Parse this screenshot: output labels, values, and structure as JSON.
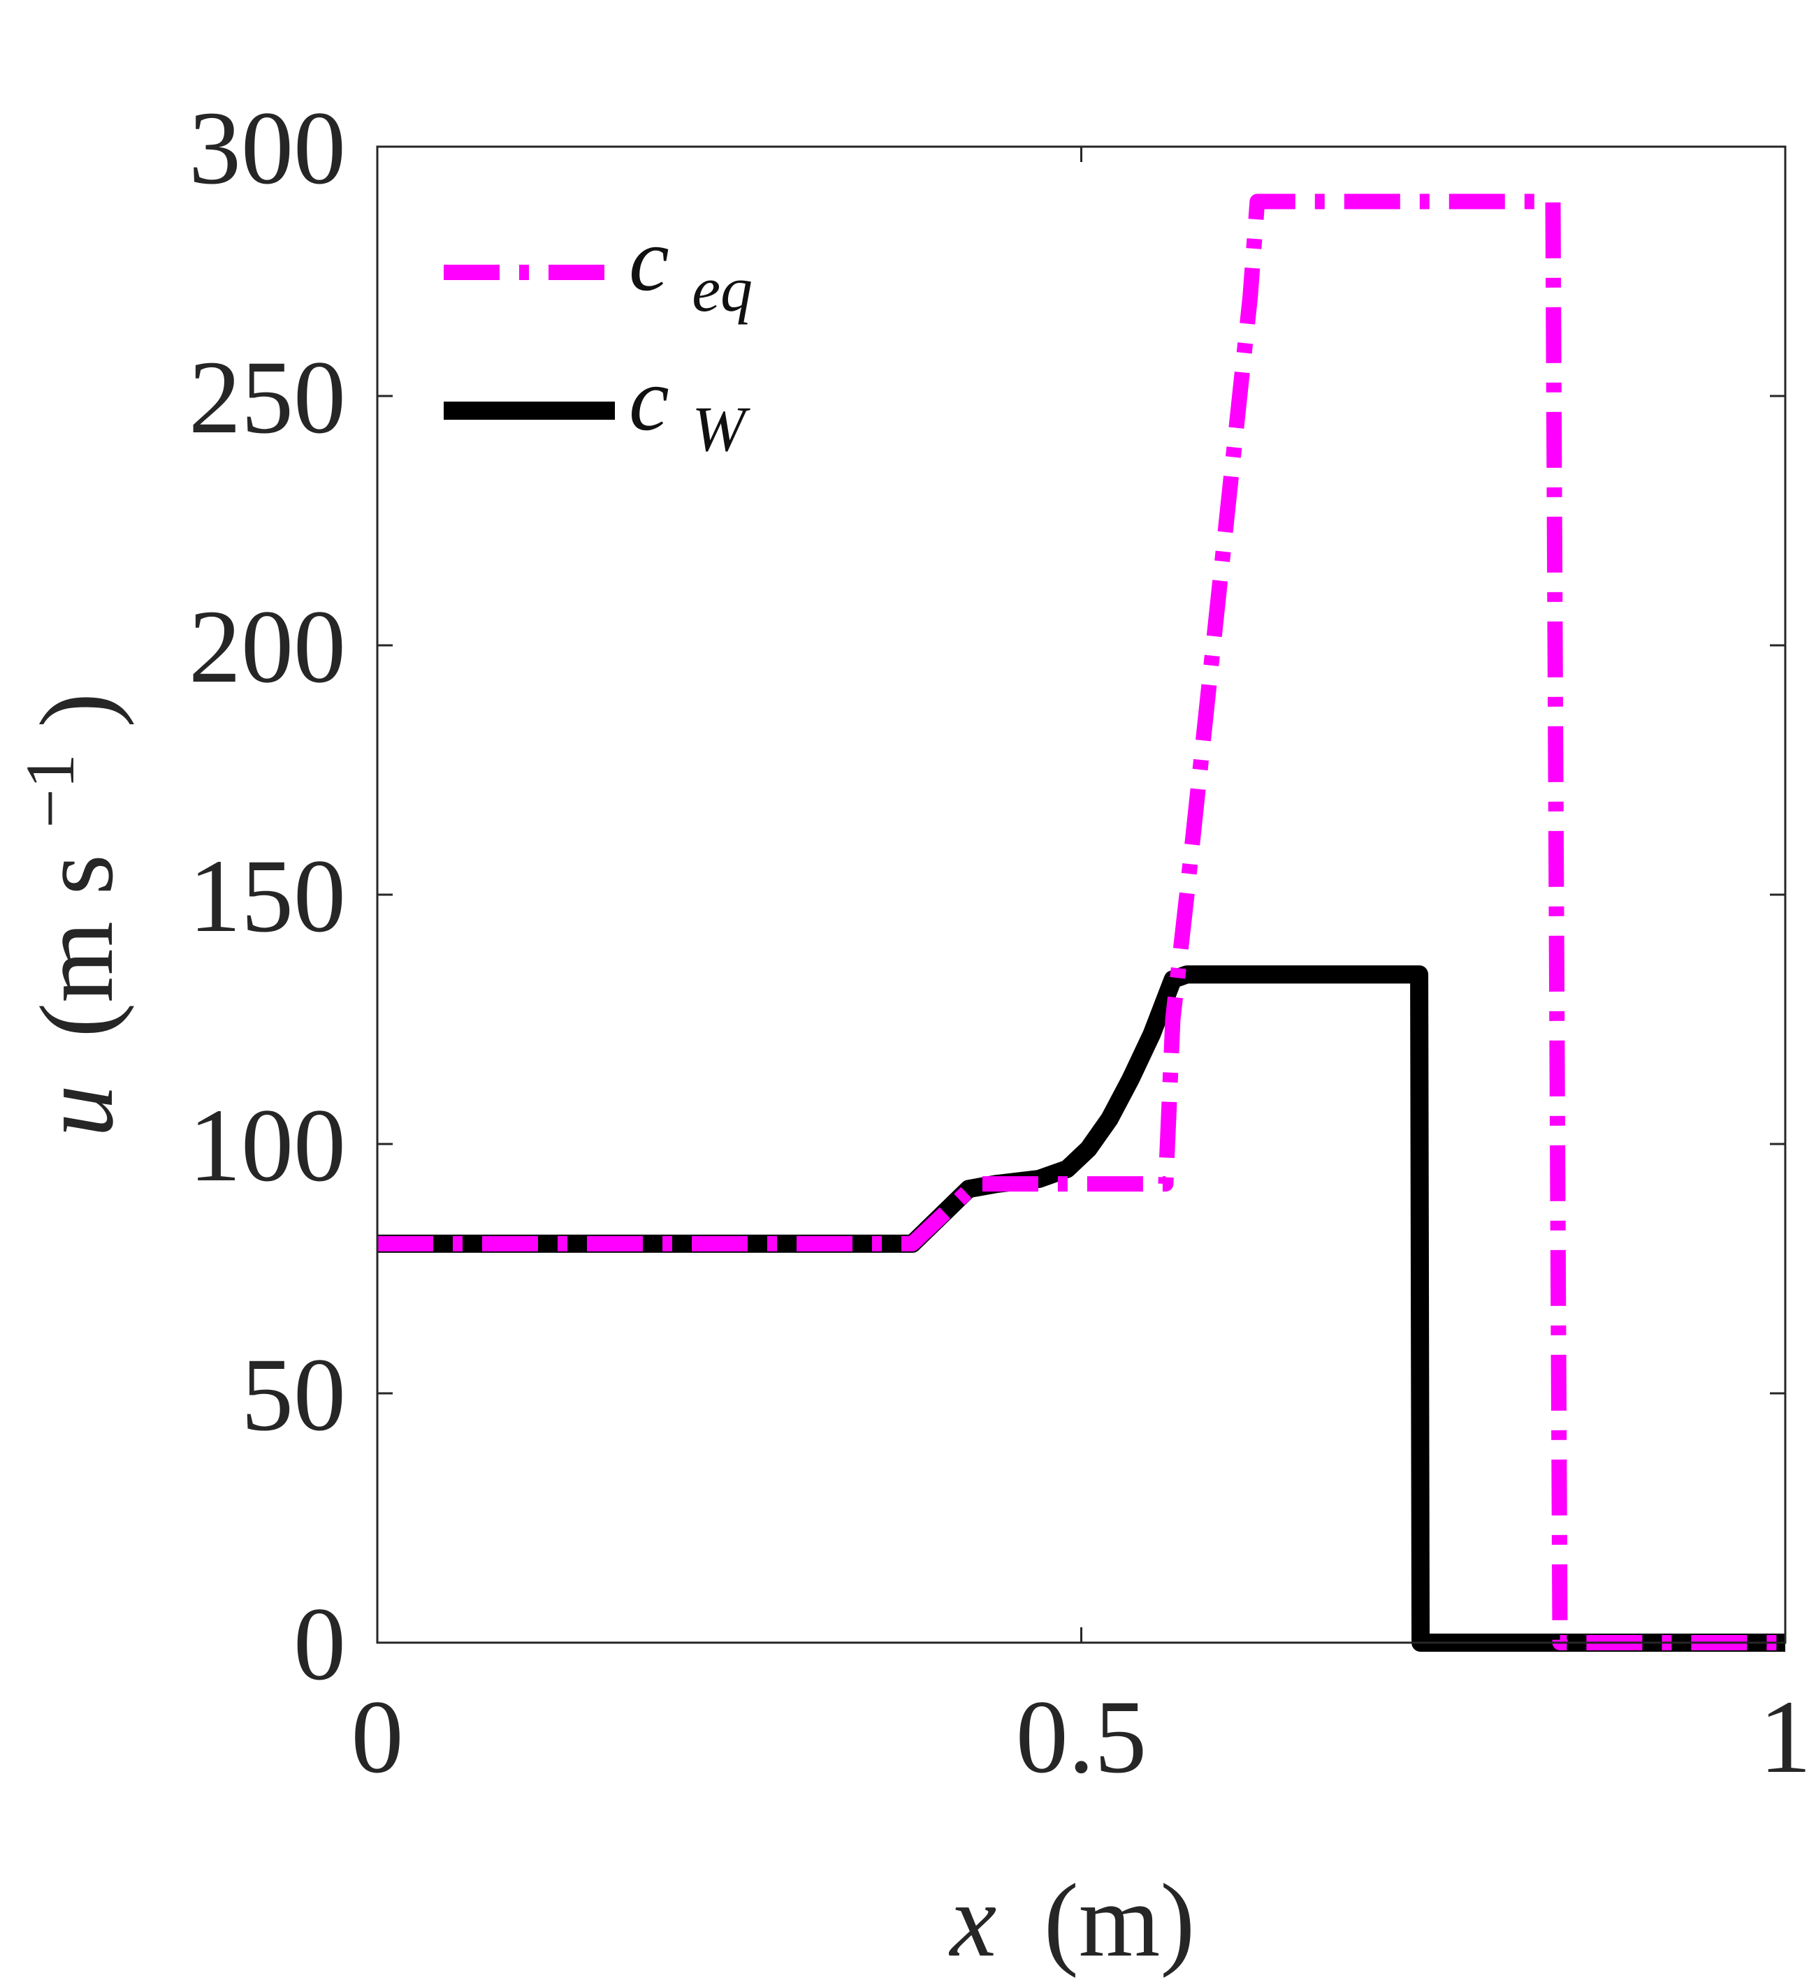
{
  "chart_data": {
    "type": "line",
    "title": "",
    "xlabel_var": "x",
    "xlabel_unit": "(m)",
    "ylabel_var": "u",
    "ylabel_unit": "(m s",
    "ylabel_exp": "−1",
    "ylabel_close": ")",
    "xlim": [
      0,
      1
    ],
    "ylim": [
      0,
      300
    ],
    "xticks": [
      0,
      0.5,
      1
    ],
    "xtick_labels": [
      "0",
      "0.5",
      "1"
    ],
    "yticks": [
      0,
      50,
      100,
      150,
      200,
      250,
      300
    ],
    "ytick_labels": [
      "0",
      "50",
      "100",
      "150",
      "200",
      "250",
      "300"
    ],
    "grid": false,
    "legend_position": "top-left",
    "series": [
      {
        "name_base": "c",
        "name_sub": "eq",
        "color": "#ff00ff",
        "style": "dash-dot",
        "x": [
          0,
          0.38,
          0.425,
          0.47,
          0.56,
          0.565,
          0.575,
          0.62,
          0.625,
          0.835,
          0.84,
          1.0
        ],
        "y": [
          80,
          80,
          92,
          92,
          92,
          125,
          150,
          270,
          289,
          289,
          0,
          0
        ]
      },
      {
        "name_base": "c",
        "name_sub": "W",
        "color": "#000000",
        "style": "solid",
        "x": [
          0,
          0.38,
          0.42,
          0.44,
          0.47,
          0.49,
          0.505,
          0.52,
          0.535,
          0.55,
          0.565,
          0.575,
          0.74,
          0.741,
          1.0
        ],
        "y": [
          80,
          80,
          91,
          92,
          93,
          95,
          99,
          105,
          113,
          122,
          133,
          134,
          134,
          0,
          0
        ]
      }
    ]
  }
}
